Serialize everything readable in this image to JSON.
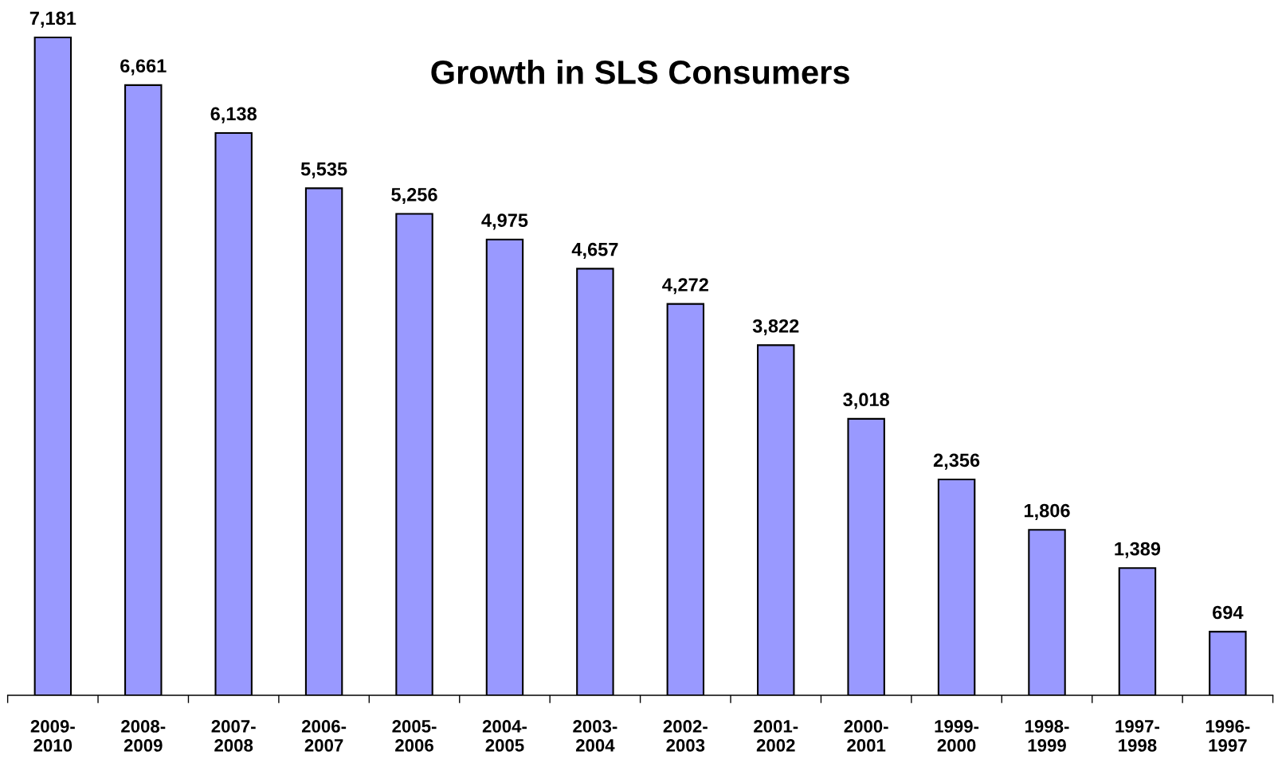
{
  "chart_data": {
    "type": "bar",
    "title": "Growth in SLS Consumers",
    "categories": [
      "2009-\n2010",
      "2008-\n2009",
      "2007-\n2008",
      "2006-\n2007",
      "2005-\n2006",
      "2004-\n2005",
      "2003-\n2004",
      "2002-\n2003",
      "2001-\n2002",
      "2000-\n2001",
      "1999-\n2000",
      "1998-\n1999",
      "1997-\n1998",
      "1996-\n1997"
    ],
    "values": [
      7181,
      6661,
      6138,
      5535,
      5256,
      4975,
      4657,
      4272,
      3822,
      3018,
      2356,
      1806,
      1389,
      694
    ],
    "value_labels": [
      "7,181",
      "6,661",
      "6,138",
      "5,535",
      "5,256",
      "4,975",
      "4,657",
      "4,272",
      "3,822",
      "3,018",
      "2,356",
      "1,806",
      "1,389",
      "694"
    ],
    "color": "#9999ff",
    "grid": false,
    "legend": false
  }
}
